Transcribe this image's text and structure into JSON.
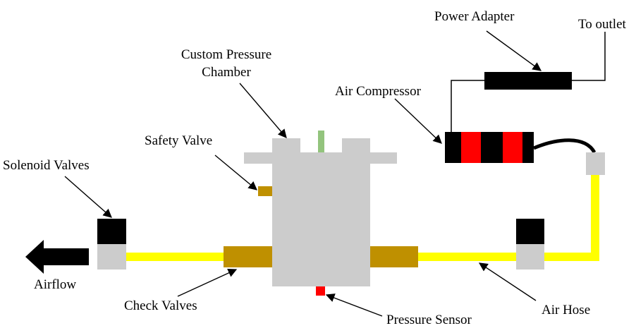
{
  "labels": {
    "power_adapter": "Power Adapter",
    "to_outlet": "To outlet",
    "chamber_line1": "Custom Pressure",
    "chamber_line2": "Chamber",
    "air_compressor": "Air Compressor",
    "safety_valve": "Safety Valve",
    "solenoid_valves": "Solenoid Valves",
    "airflow": "Airflow",
    "check_valves": "Check Valves",
    "pressure_sensor": "Pressure Sensor",
    "air_hose": "Air Hose"
  },
  "colors": {
    "hose": "#ffff00",
    "chamber": "#cccccc",
    "valve_body": "#bf9000",
    "solenoid_top": "#000000",
    "solenoid_bottom": "#cccccc",
    "compressor_band": "#ff0000",
    "sensor": "#ff0000",
    "indicator": "#93c47d"
  }
}
